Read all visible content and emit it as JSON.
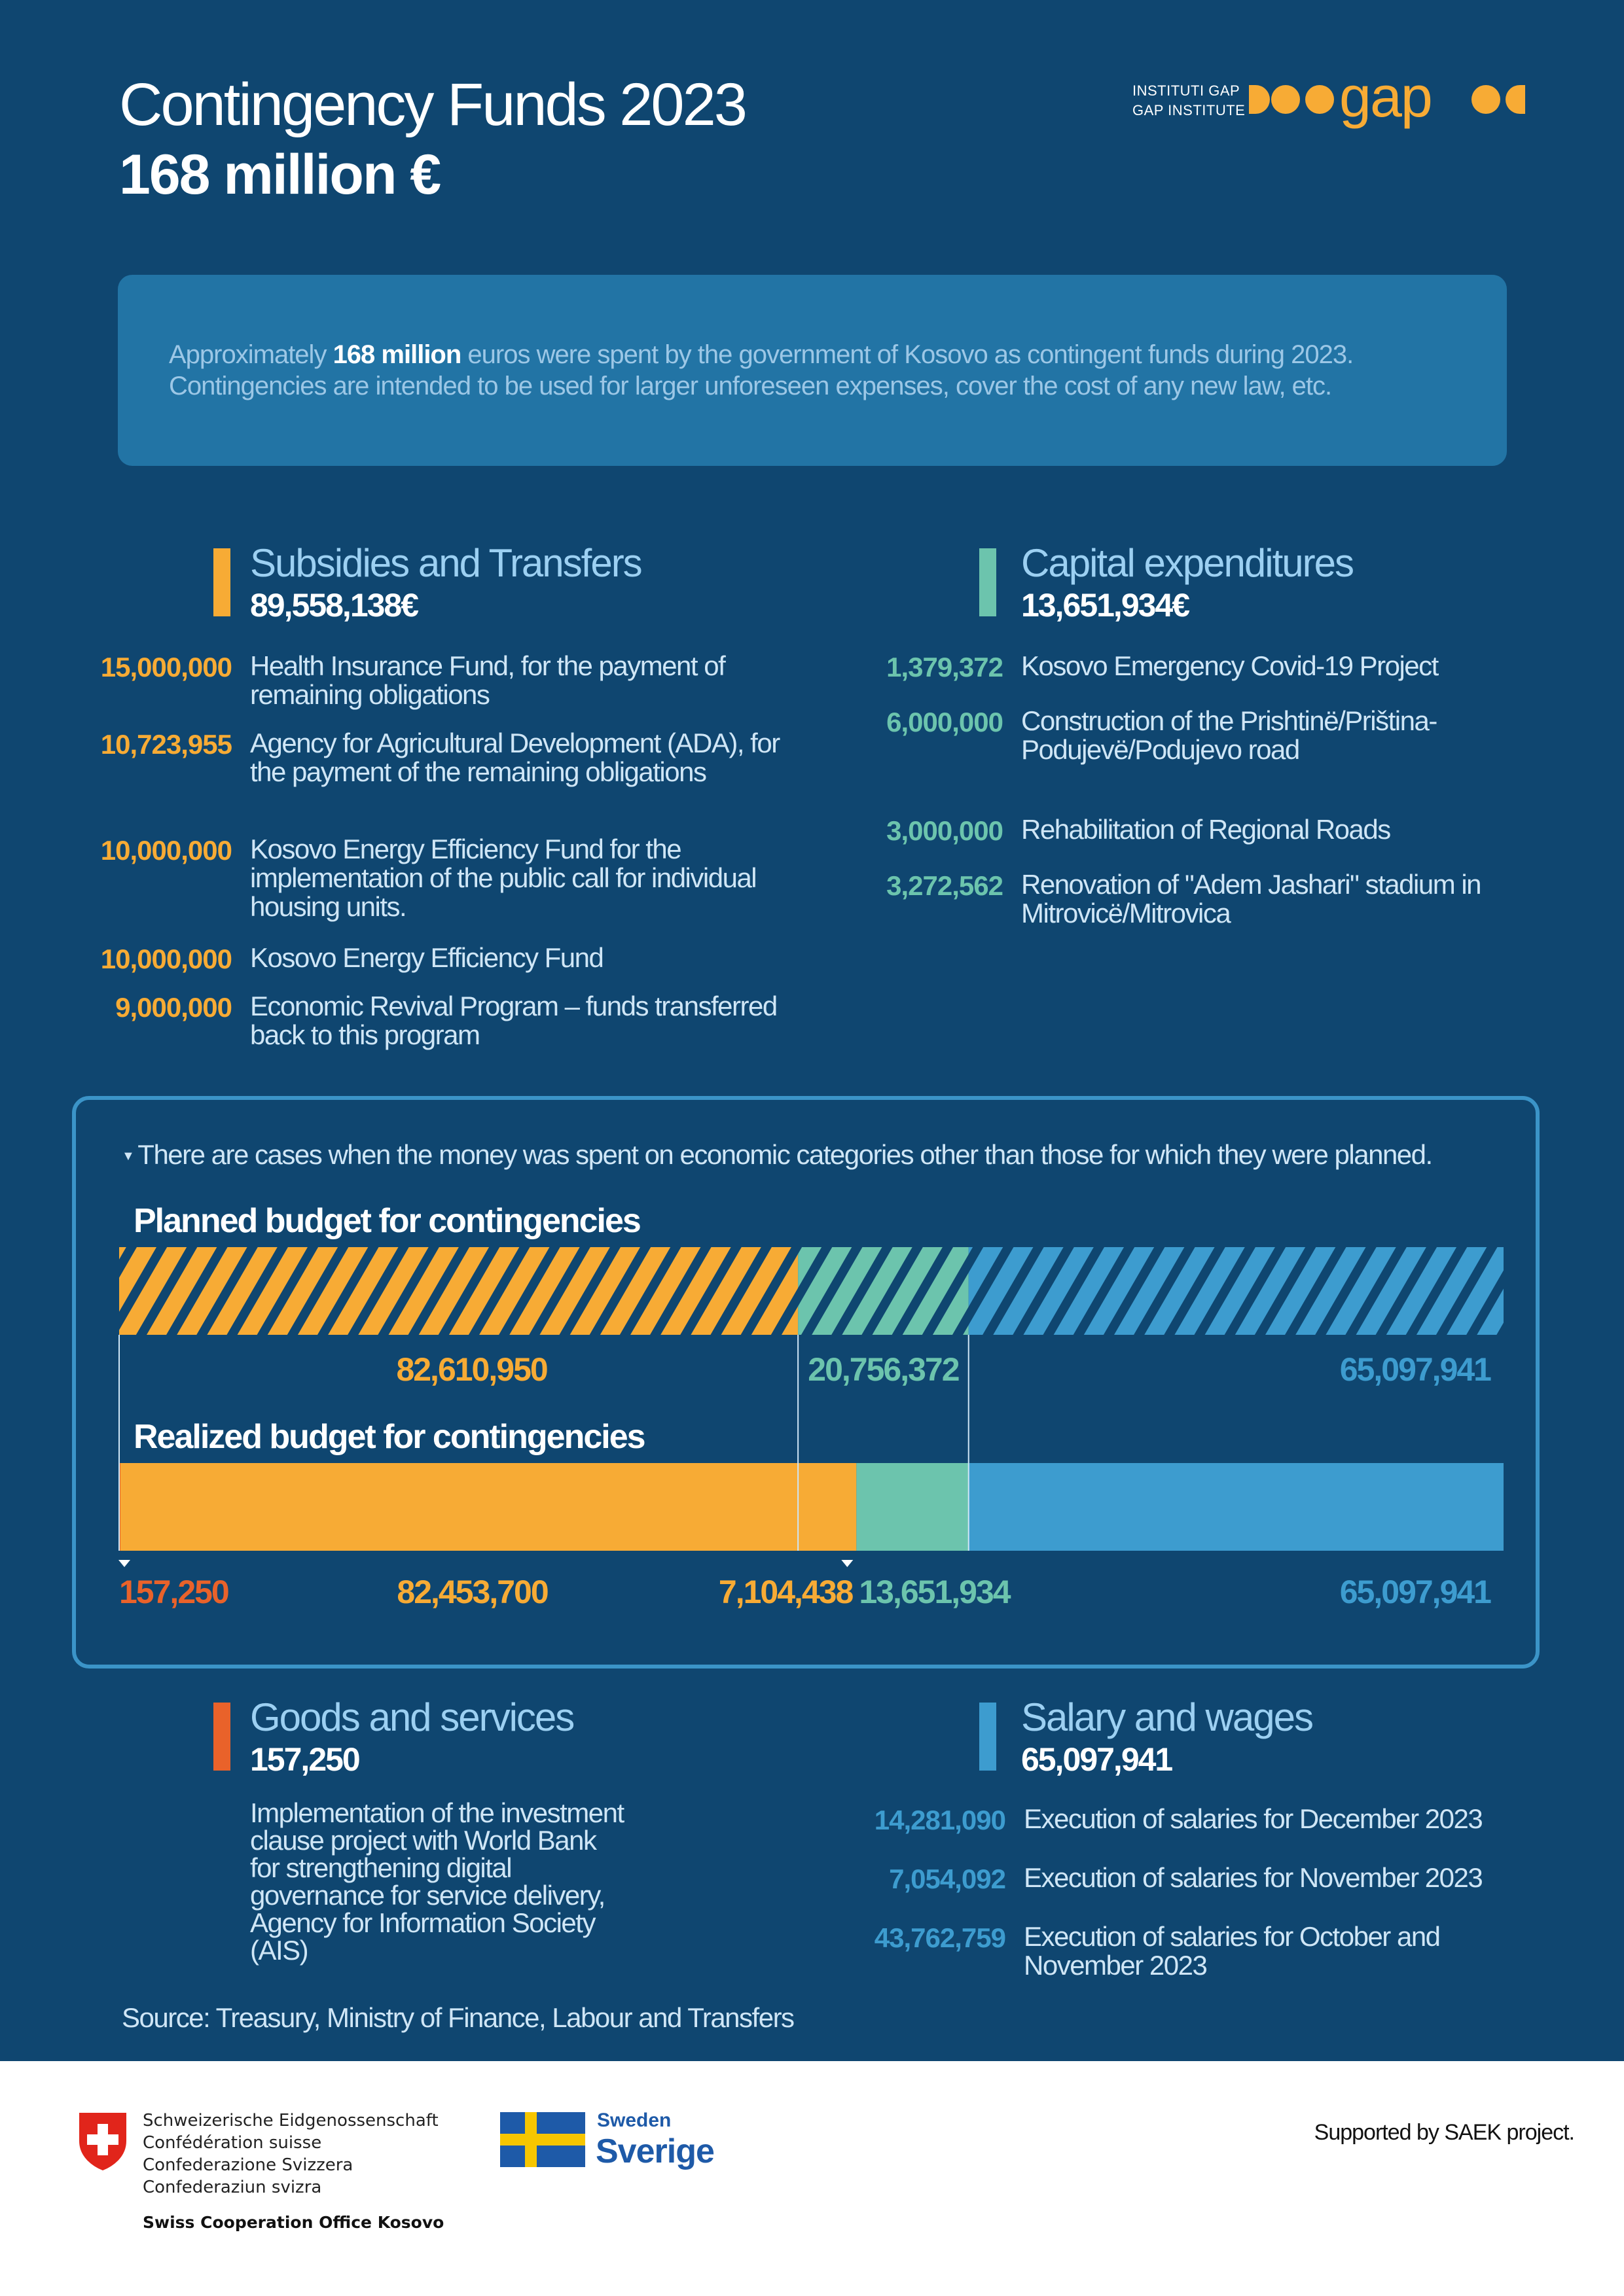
{
  "header": {
    "title": "Contingency Funds 2023",
    "subtitle": "168 million €",
    "logo": {
      "line1": "INSTITUTI GAP",
      "line2": "GAP INSTITUTE",
      "mark": "gap"
    }
  },
  "intro": {
    "before": "Approximately ",
    "highlight": "168 million",
    "after": " euros were spent by the government of Kosovo as contingent funds during 2023. Contingencies are intended to be used for larger unforeseen expenses, cover the cost of any new law, etc."
  },
  "subsidies": {
    "title": "Subsidies and Transfers",
    "total": "89,558,138€",
    "color": "#f7ab35",
    "items": [
      {
        "amount": "15,000,000",
        "text": "Health Insurance Fund, for the payment of remaining obligations"
      },
      {
        "amount": "10,723,955",
        "text": "Agency for Agricultural Development (ADA), for the payment of the remaining obligations"
      },
      {
        "amount": "10,000,000",
        "text": "Kosovo Energy Efficiency Fund for the implementation of the public call for individual housing units."
      },
      {
        "amount": "10,000,000",
        "text": "Kosovo Energy Efficiency Fund"
      },
      {
        "amount": "9,000,000",
        "text": "Economic Revival Program – funds transferred back to this program"
      }
    ]
  },
  "capital": {
    "title": "Capital expenditures",
    "total": "13,651,934€",
    "color": "#6cc4ad",
    "items": [
      {
        "amount": "1,379,372",
        "text": "Kosovo Emergency Covid-19 Project"
      },
      {
        "amount": "6,000,000",
        "text": "Construction of the Prishtinë/Priština-Podujevë/Podujevo road"
      },
      {
        "amount": "3,000,000",
        "text": "Rehabilitation of Regional Roads"
      },
      {
        "amount": "3,272,562",
        "text": "Renovation of \"Adem Jashari\" stadium in Mitrovicë/Mitrovica"
      }
    ]
  },
  "note": "There are cases when the money was spent on economic categories other than those for which they were planned.",
  "chart_data": {
    "type": "bar",
    "planned": {
      "title": "Planned budget for contingencies",
      "segments": [
        {
          "label": "82,610,950",
          "value": 82610950,
          "color": "#f7ab35"
        },
        {
          "label": "20,756,372",
          "value": 20756372,
          "color": "#6cc4ad"
        },
        {
          "label": "65,097,941",
          "value": 65097941,
          "color": "#3d9ccf"
        }
      ]
    },
    "realized": {
      "title": "Realized budget for contingencies",
      "segments": [
        {
          "label": "157,250",
          "value": 157250,
          "color": "#e9622a"
        },
        {
          "label": "82,453,700",
          "value": 82453700,
          "color": "#f7ab35"
        },
        {
          "label": "7,104,438",
          "value": 7104438,
          "color": "#f7ab35"
        },
        {
          "label": "13,651,934",
          "value": 13651934,
          "color": "#6cc4ad"
        },
        {
          "label": "65,097,941",
          "value": 65097941,
          "color": "#3d9ccf"
        }
      ]
    }
  },
  "goods": {
    "title": "Goods and services",
    "total": "157,250",
    "color": "#e9622a",
    "text": "Implementation of the investment clause project with World Bank for strengthening digital governance for service delivery, Agency for Information Society (AIS)"
  },
  "salary": {
    "title": "Salary and wages",
    "total": "65,097,941",
    "color": "#3d9ccf",
    "items": [
      {
        "amount": "14,281,090",
        "text": "Execution of salaries for December 2023"
      },
      {
        "amount": "7,054,092",
        "text": "Execution of salaries for November 2023"
      },
      {
        "amount": "43,762,759",
        "text": "Execution of salaries for October and November 2023"
      }
    ]
  },
  "source": "Source: Treasury, Ministry of Finance, Labour and Transfers",
  "footer": {
    "swiss_lines": [
      "Schweizerische Eidgenossenschaft",
      "Confédération suisse",
      "Confederazione Svizzera",
      "Confederaziun svizra"
    ],
    "swiss_office": "Swiss Cooperation Office Kosovo",
    "sweden_en": "Sweden",
    "sweden_sv": "Sverige",
    "supported": "Supported by SAEK project."
  }
}
